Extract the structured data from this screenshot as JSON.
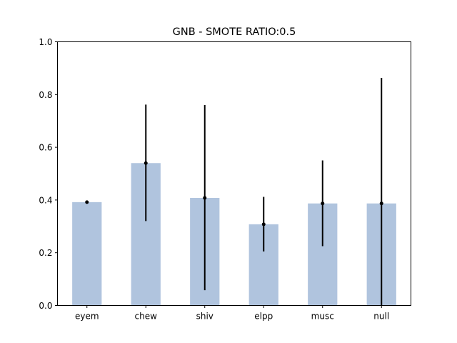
{
  "chart_data": {
    "type": "bar",
    "title": "GNB - SMOTE RATIO:0.5",
    "xlabel": "",
    "ylabel": "",
    "categories": [
      "eyem",
      "chew",
      "shiv",
      "elpp",
      "musc",
      "null"
    ],
    "values": [
      0.392,
      0.54,
      0.408,
      0.308,
      0.387,
      0.387
    ],
    "error_low": [
      0.389,
      0.32,
      0.058,
      0.205,
      0.225,
      0.0
    ],
    "error_high": [
      0.395,
      0.762,
      0.76,
      0.412,
      0.55,
      0.863
    ],
    "ylim": [
      0,
      1.0
    ],
    "yticks": [
      0.0,
      0.2,
      0.4,
      0.6,
      0.8,
      1.0
    ],
    "ytick_labels": [
      "0.0",
      "0.2",
      "0.4",
      "0.6",
      "0.8",
      "1.0"
    ],
    "grid": false,
    "colors": {
      "bar": "#b0c4de",
      "error": "#000000",
      "axis": "#000000"
    }
  }
}
